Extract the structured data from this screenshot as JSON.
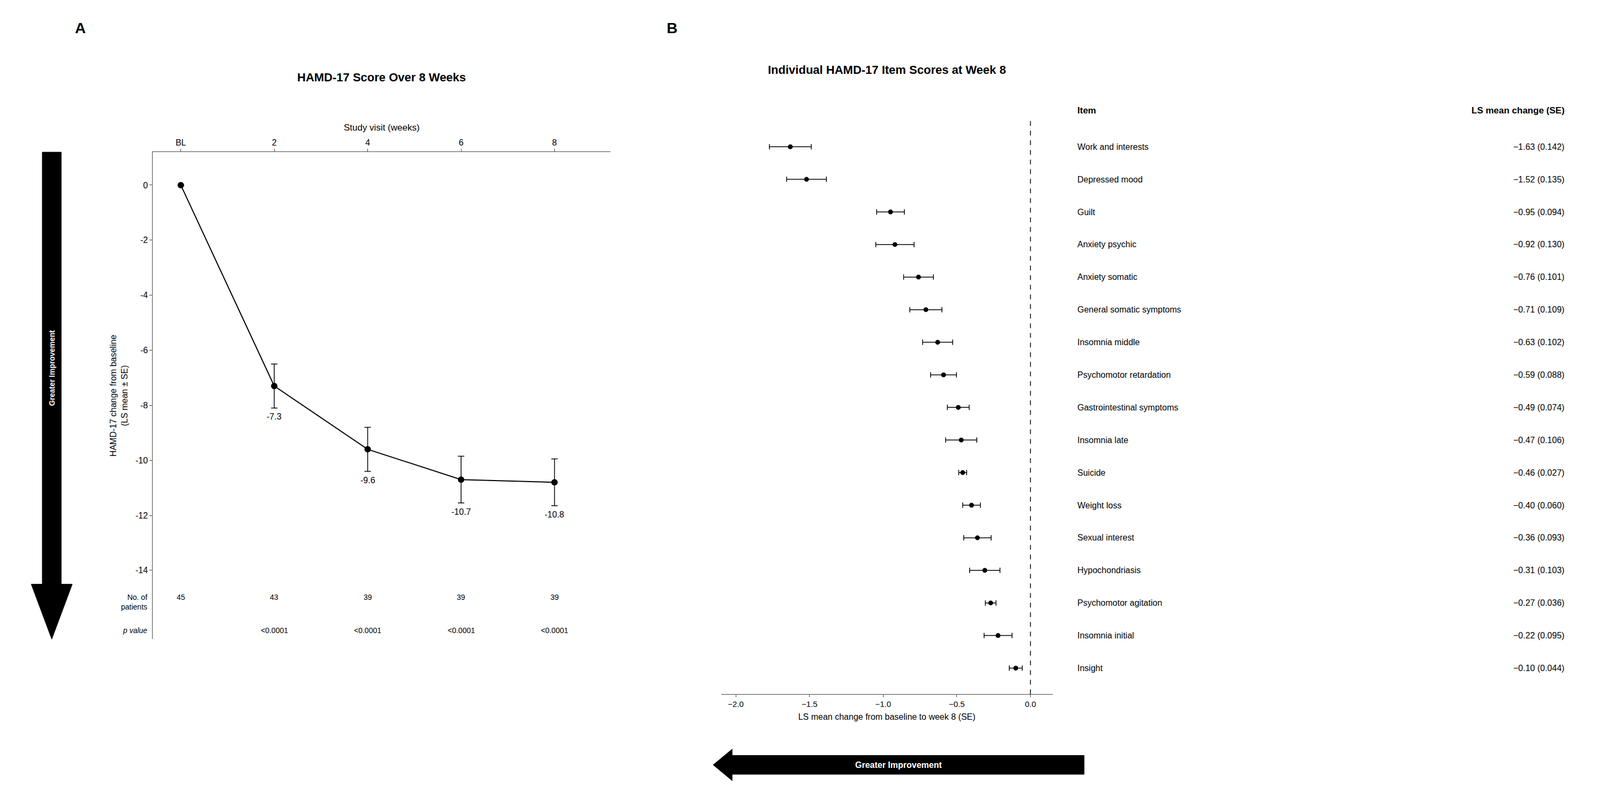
{
  "chart_data": [
    {
      "type": "line",
      "panel_label": "A",
      "title": "HAMD-17 Score Over 8 Weeks",
      "x_label": "Study visit (weeks)",
      "y_label": "HAMD-17 change from baseline\n(LS mean ± SE)",
      "x": [
        0,
        2,
        4,
        6,
        8
      ],
      "values": [
        0,
        -7.3,
        -9.6,
        -10.7,
        -10.8
      ],
      "errors": [
        0,
        0.8,
        0.8,
        0.85,
        0.85
      ],
      "value_labels": [
        null,
        "-7.3",
        "-9.6",
        "-10.7",
        "-10.8"
      ],
      "data_labels": true,
      "xlim": [
        -0.6,
        9.2
      ],
      "xticks": [
        {
          "value": 0,
          "label": "BL"
        },
        2,
        4,
        6,
        8
      ],
      "ylim": [
        -16.5,
        1.2
      ],
      "yticks": [
        0,
        -2,
        -4,
        -6,
        -8,
        -10,
        -12,
        -14
      ],
      "color": "#000000",
      "marker": "circle",
      "line_style": "solid",
      "grid": false,
      "patients_label": "No. of\npatients",
      "patients": [
        45,
        43,
        39,
        39,
        39
      ],
      "p_value_label": "p value",
      "p_values": [
        null,
        "<0.0001",
        "<0.0001",
        "<0.0001",
        "<0.0001"
      ],
      "arrow_label": "Greater Improvement"
    },
    {
      "type": "forest",
      "panel_label": "B",
      "title": "Individual HAMD-17 Item Scores at Week 8",
      "x_label": "LS mean change from baseline to week 8 (SE)",
      "categories": [
        "Work and interests",
        "Depressed mood",
        "Guilt",
        "Anxiety psychic",
        "Anxiety somatic",
        "General somatic symptoms",
        "Insomnia middle",
        "Psychomotor retardation",
        "Gastrointestinal symptoms",
        "Insomnia late",
        "Suicide",
        "Weight loss",
        "Sexual interest",
        "Hypochondriasis",
        "Psychomotor agitation",
        "Insomnia initial",
        "Insight"
      ],
      "values": [
        -1.63,
        -1.52,
        -0.95,
        -0.92,
        -0.76,
        -0.71,
        -0.63,
        -0.59,
        -0.49,
        -0.47,
        -0.46,
        -0.4,
        -0.36,
        -0.31,
        -0.27,
        -0.22,
        -0.1
      ],
      "errors": [
        0.142,
        0.135,
        0.094,
        0.13,
        0.101,
        0.109,
        0.102,
        0.088,
        0.074,
        0.106,
        0.027,
        0.06,
        0.093,
        0.103,
        0.036,
        0.095,
        0.044
      ],
      "value_labels": [
        "−1.63 (0.142)",
        "−1.52 (0.135)",
        "−0.95 (0.094)",
        "−0.92 (0.130)",
        "−0.76 (0.101)",
        "−0.71 (0.109)",
        "−0.63 (0.102)",
        "−0.59 (0.088)",
        "−0.49 (0.074)",
        "−0.47 (0.106)",
        "−0.46 (0.027)",
        "−0.40 (0.060)",
        "−0.36 (0.093)",
        "−0.31 (0.103)",
        "−0.27 (0.036)",
        "−0.22 (0.095)",
        "−0.10 (0.044)"
      ],
      "xlim": [
        -2.1,
        0.15
      ],
      "xticks": [
        {
          "value": -2.0,
          "label": "−2.0"
        },
        {
          "value": -1.5,
          "label": "−1.5"
        },
        {
          "value": -1.0,
          "label": "−1.0"
        },
        {
          "value": -0.5,
          "label": "−0.5"
        },
        {
          "value": 0.0,
          "label": "0.0"
        }
      ],
      "reference_line": 0,
      "item_header": "Item",
      "value_header": "LS mean change (SE)",
      "color": "#000000",
      "marker": "circle",
      "grid": false,
      "tick_labels": "x",
      "arrow_label": "Greater Improvement"
    }
  ]
}
